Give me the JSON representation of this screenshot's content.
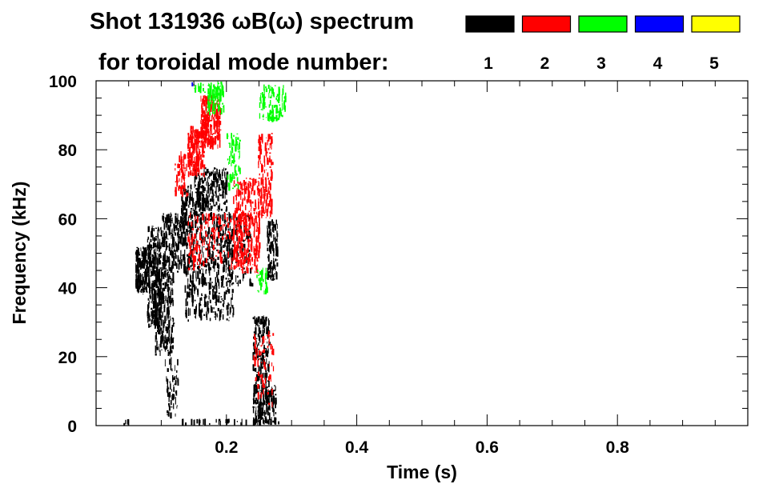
{
  "chart_data": {
    "type": "heatmap",
    "title": "Shot 131936 ωB(ω) spectrum",
    "legend_title": "for toroidal mode number:",
    "legend_placement": "top-right",
    "xlabel": "Time (s)",
    "ylabel": "Frequency (kHz)",
    "xlim": [
      0.0,
      1.0
    ],
    "ylim": [
      0,
      100
    ],
    "xticks": [
      {
        "value": 0.2,
        "label": "0.2"
      },
      {
        "value": 0.4,
        "label": "0.4"
      },
      {
        "value": 0.6,
        "label": "0.6"
      },
      {
        "value": 0.8,
        "label": "0.8"
      }
    ],
    "yticks": [
      {
        "value": 0,
        "label": "0"
      },
      {
        "value": 20,
        "label": "20"
      },
      {
        "value": 40,
        "label": "40"
      },
      {
        "value": 60,
        "label": "60"
      },
      {
        "value": 80,
        "label": "80"
      },
      {
        "value": 100,
        "label": "100"
      }
    ],
    "grid": false,
    "series": [
      {
        "name": "1",
        "color": "#000000",
        "regions": [
          {
            "t": [
              0.06,
              0.078
            ],
            "f": [
              38,
              52
            ],
            "density": 1.0
          },
          {
            "t": [
              0.078,
              0.1
            ],
            "f": [
              28,
              58
            ],
            "density": 0.75
          },
          {
            "t": [
              0.09,
              0.118
            ],
            "f": [
              20,
              45
            ],
            "density": 0.55
          },
          {
            "t": [
              0.1,
              0.14
            ],
            "f": [
              44,
              62
            ],
            "density": 0.55
          },
          {
            "t": [
              0.105,
              0.125
            ],
            "f": [
              2,
              20
            ],
            "density": 0.25
          },
          {
            "t": [
              0.13,
              0.165
            ],
            "f": [
              60,
              70
            ],
            "density": 0.5
          },
          {
            "t": [
              0.15,
              0.2
            ],
            "f": [
              62,
              75
            ],
            "density": 0.55
          },
          {
            "t": [
              0.135,
              0.21
            ],
            "f": [
              30,
              62
            ],
            "density": 0.35
          },
          {
            "t": [
              0.19,
              0.24
            ],
            "f": [
              40,
              62
            ],
            "density": 0.2
          },
          {
            "t": [
              0.24,
              0.275
            ],
            "f": [
              0,
              12
            ],
            "density": 0.7
          },
          {
            "t": [
              0.24,
              0.265
            ],
            "f": [
              10,
              32
            ],
            "density": 0.45
          },
          {
            "t": [
              0.262,
              0.278
            ],
            "f": [
              42,
              60
            ],
            "density": 0.65
          },
          {
            "t": [
              0.04,
              0.05
            ],
            "f": [
              0,
              2
            ],
            "density": 0.3
          },
          {
            "t": [
              0.13,
              0.28
            ],
            "f": [
              0,
              2
            ],
            "density": 0.2
          }
        ]
      },
      {
        "name": "2",
        "color": "#ff0000",
        "regions": [
          {
            "t": [
              0.14,
              0.165
            ],
            "f": [
              72,
              87
            ],
            "density": 0.8
          },
          {
            "t": [
              0.16,
              0.19
            ],
            "f": [
              80,
              96
            ],
            "density": 0.85
          },
          {
            "t": [
              0.12,
              0.14
            ],
            "f": [
              66,
              80
            ],
            "density": 0.35
          },
          {
            "t": [
              0.21,
              0.25
            ],
            "f": [
              44,
              72
            ],
            "density": 0.45
          },
          {
            "t": [
              0.248,
              0.27
            ],
            "f": [
              60,
              85
            ],
            "density": 0.45
          },
          {
            "t": [
              0.14,
              0.23
            ],
            "f": [
              45,
              62
            ],
            "density": 0.2
          },
          {
            "t": [
              0.24,
              0.272
            ],
            "f": [
              5,
              28
            ],
            "density": 0.15
          }
        ]
      },
      {
        "name": "3",
        "color": "#00ff00",
        "regions": [
          {
            "t": [
              0.17,
              0.195
            ],
            "f": [
              90,
              100
            ],
            "density": 0.6
          },
          {
            "t": [
              0.2,
              0.22
            ],
            "f": [
              68,
              85
            ],
            "density": 0.35
          },
          {
            "t": [
              0.25,
              0.29
            ],
            "f": [
              88,
              99
            ],
            "density": 0.4
          },
          {
            "t": [
              0.245,
              0.262
            ],
            "f": [
              38,
              46
            ],
            "density": 0.4
          },
          {
            "t": [
              0.15,
              0.175
            ],
            "f": [
              96,
              100
            ],
            "density": 0.3
          }
        ]
      },
      {
        "name": "4",
        "color": "#0000ff",
        "regions": [
          {
            "t": [
              0.14,
              0.15
            ],
            "f": [
              98,
              100
            ],
            "density": 0.2
          }
        ]
      },
      {
        "name": "5",
        "color": "#ffff00",
        "regions": []
      }
    ]
  }
}
